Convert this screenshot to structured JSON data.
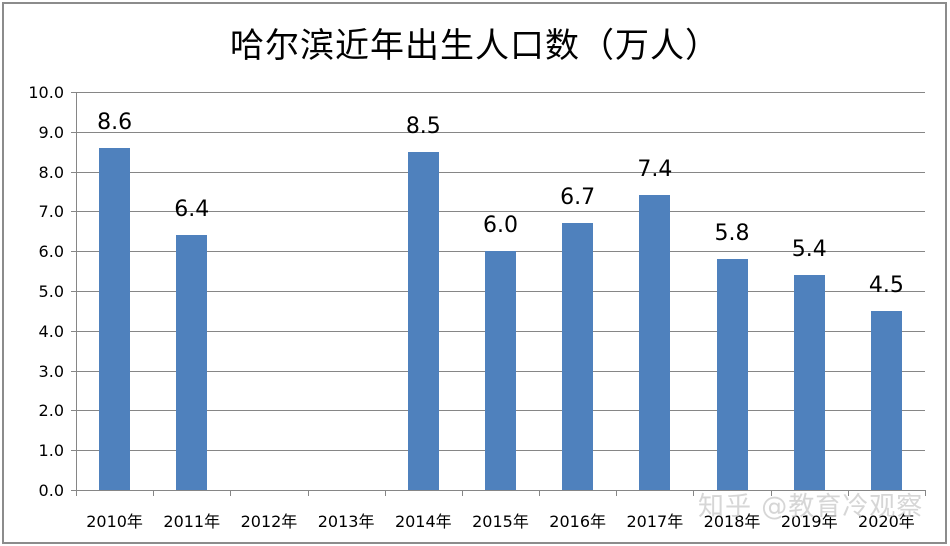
{
  "chart_data": {
    "type": "bar",
    "title": "哈尔滨近年出生人口数（万人）",
    "xlabel": "",
    "ylabel": "",
    "categories": [
      "2010年",
      "2011年",
      "2012年",
      "2013年",
      "2014年",
      "2015年",
      "2016年",
      "2017年",
      "2018年",
      "2019年",
      "2020年"
    ],
    "values": [
      8.6,
      6.4,
      null,
      null,
      8.5,
      6.0,
      6.7,
      7.4,
      5.8,
      5.4,
      4.5
    ],
    "data_labels": [
      "8.6",
      "6.4",
      "",
      "",
      "8.5",
      "6.0",
      "6.7",
      "7.4",
      "5.8",
      "5.4",
      "4.5"
    ],
    "ylim": [
      0,
      10
    ],
    "yticks": [
      "0.0",
      "1.0",
      "2.0",
      "3.0",
      "4.0",
      "5.0",
      "6.0",
      "7.0",
      "8.0",
      "9.0",
      "10.0"
    ],
    "grid": true,
    "legend": "none",
    "bar_color": "#4f81bd"
  },
  "watermark": "知乎 @教育冷观察"
}
